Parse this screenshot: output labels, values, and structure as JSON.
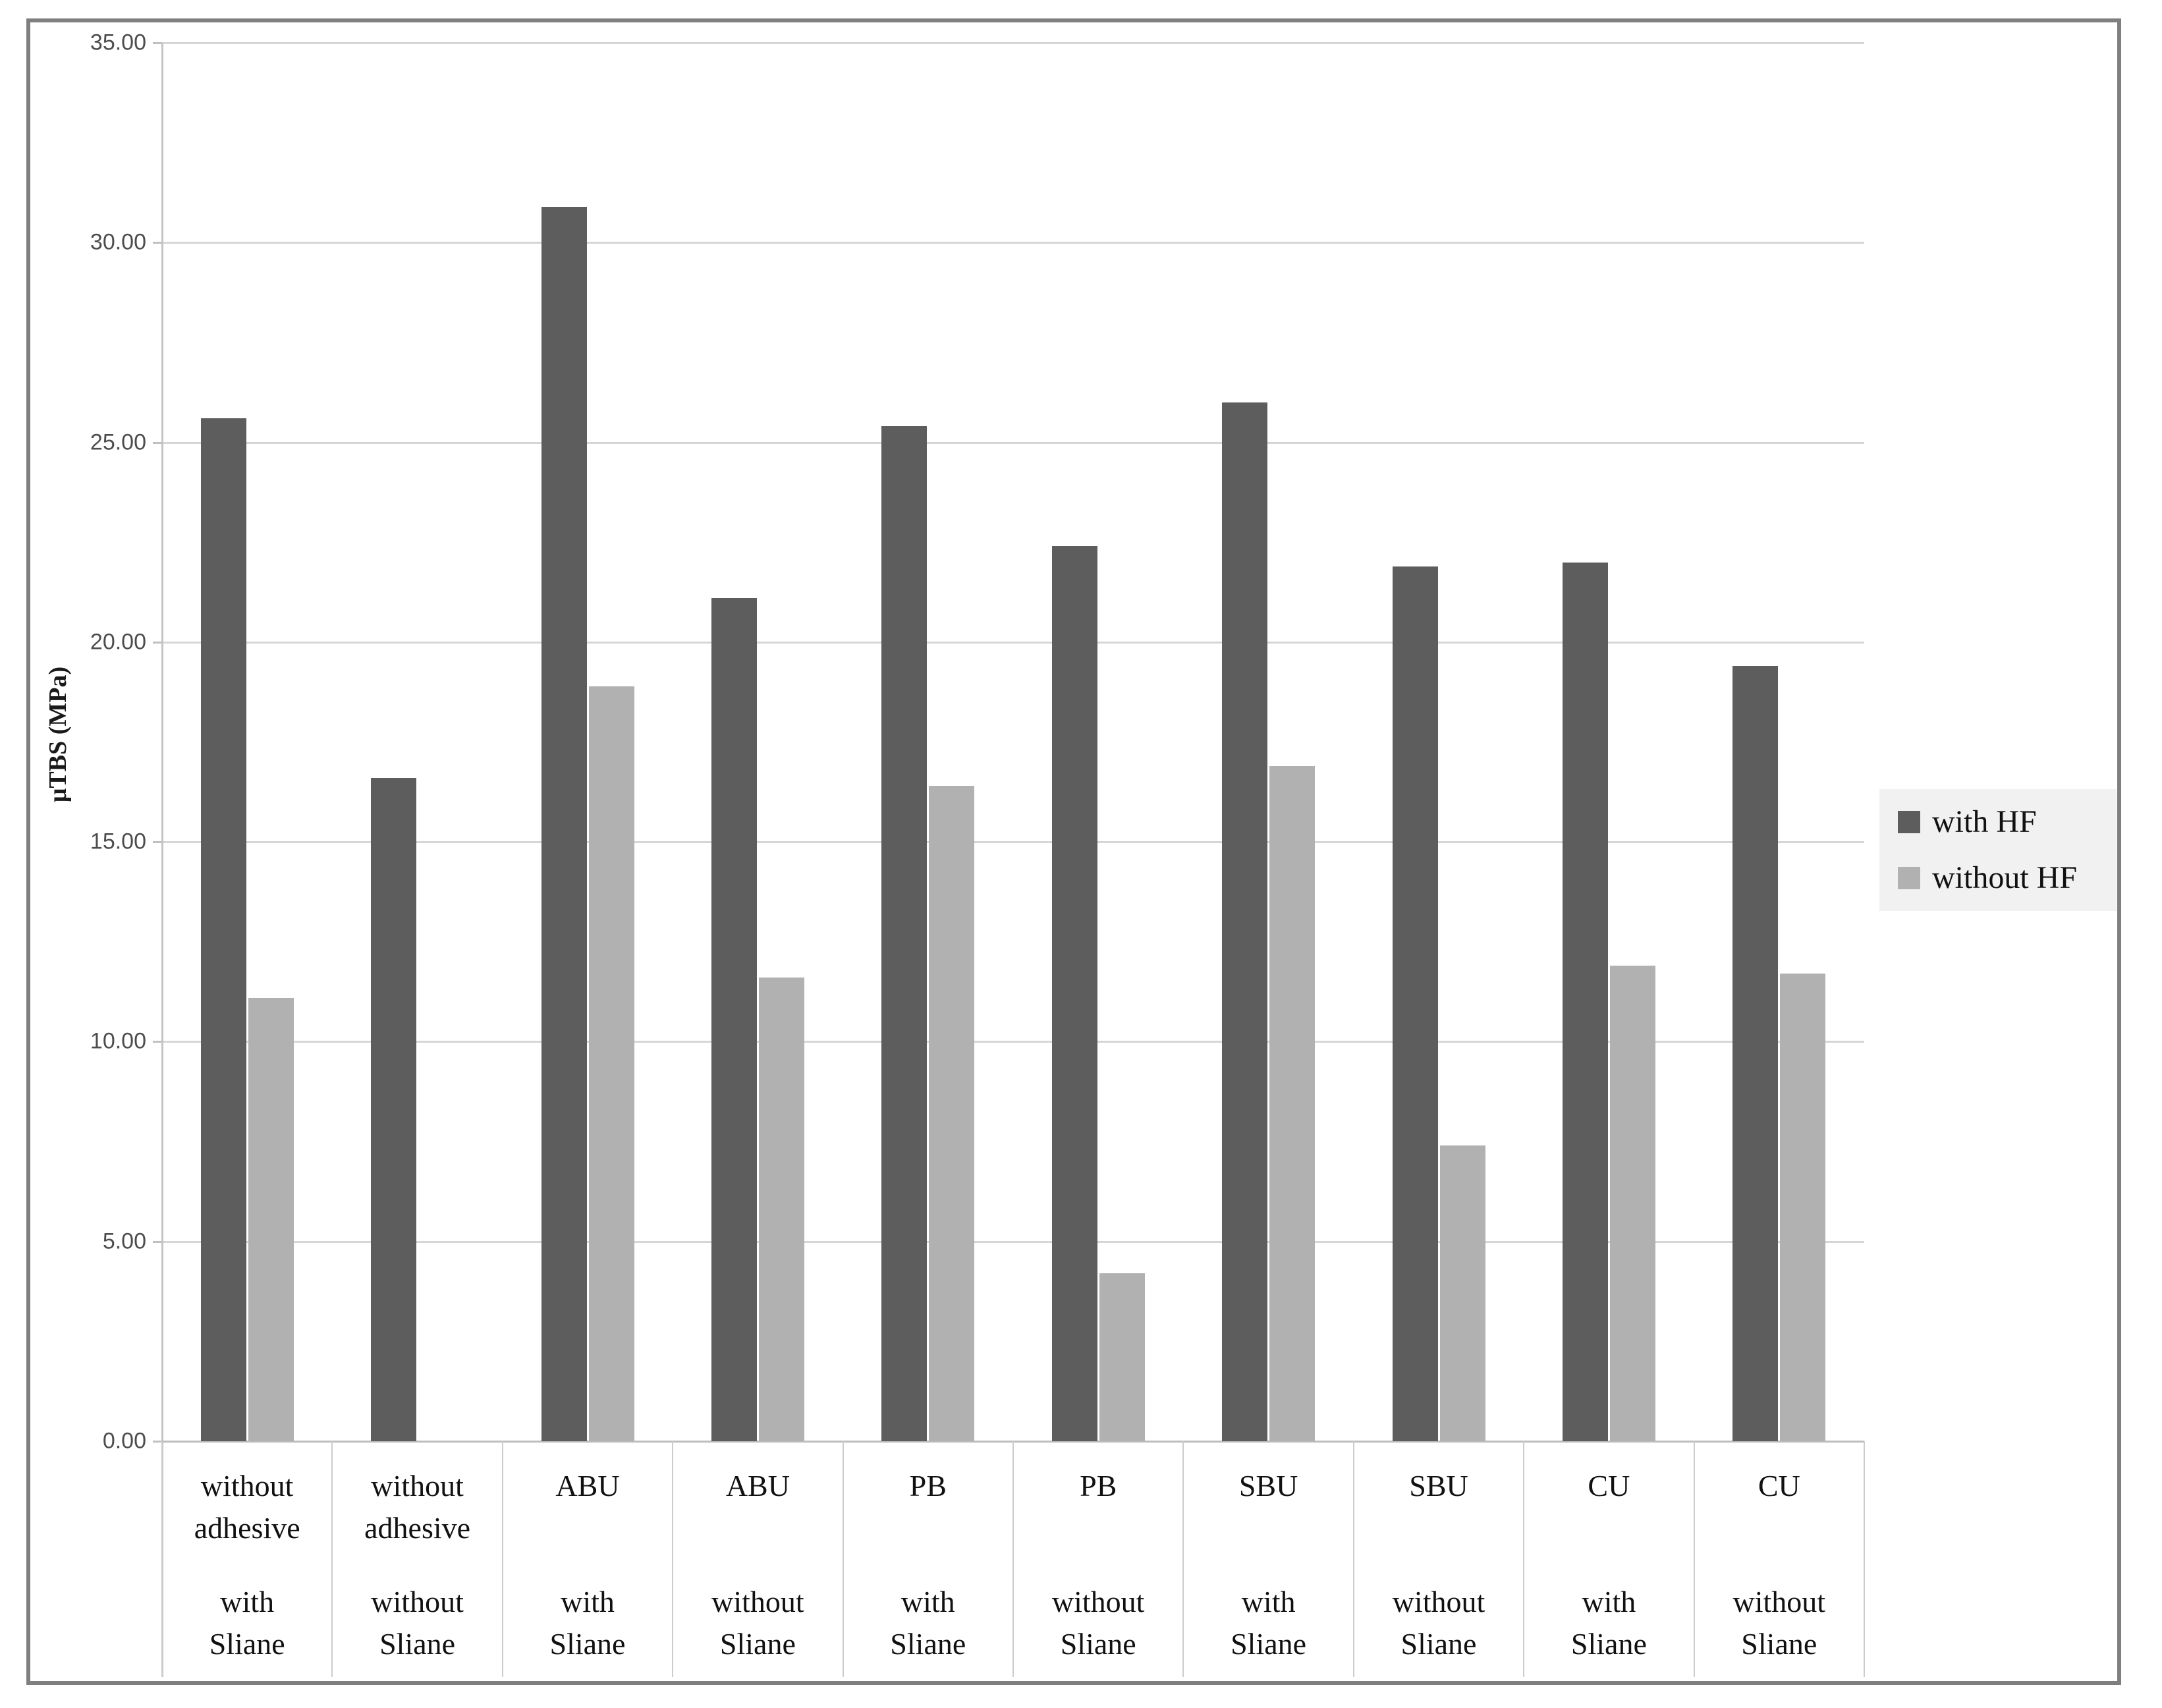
{
  "figure": {
    "y_axis_title": "μTBS (MPa)",
    "border_color": "#7f7f7f",
    "legend_bg": "#f1f1f1",
    "gridline_color": "#d6d6d6"
  },
  "chart_data": {
    "type": "bar",
    "title": "",
    "xlabel": "",
    "ylabel": "μTBS (MPa)",
    "ylim": [
      0,
      35
    ],
    "ytick_step": 5,
    "ytick_labels": [
      "0.00",
      "5.00",
      "10.00",
      "15.00",
      "20.00",
      "25.00",
      "30.00",
      "35.00"
    ],
    "grid": true,
    "legend_position": "right",
    "categories": [
      {
        "top": "without adhesive",
        "bottom": [
          "with",
          "Sliane"
        ]
      },
      {
        "top": "without adhesive",
        "bottom": [
          "without",
          "Sliane"
        ]
      },
      {
        "top": "ABU",
        "bottom": [
          "with",
          "Sliane"
        ]
      },
      {
        "top": "ABU",
        "bottom": [
          "without",
          "Sliane"
        ]
      },
      {
        "top": "PB",
        "bottom": [
          "with",
          "Sliane"
        ]
      },
      {
        "top": "PB",
        "bottom": [
          "without",
          "Sliane"
        ]
      },
      {
        "top": "SBU",
        "bottom": [
          "with",
          "Sliane"
        ]
      },
      {
        "top": "SBU",
        "bottom": [
          "without",
          "Sliane"
        ]
      },
      {
        "top": "CU",
        "bottom": [
          "with",
          "Sliane"
        ]
      },
      {
        "top": "CU",
        "bottom": [
          "without",
          "Sliane"
        ]
      }
    ],
    "series": [
      {
        "name": "with HF",
        "color": "#5d5d5d",
        "values": [
          25.6,
          16.6,
          30.9,
          21.1,
          25.4,
          22.4,
          26.0,
          21.9,
          22.0,
          19.4
        ]
      },
      {
        "name": "without HF",
        "color": "#b1b1b1",
        "values": [
          11.1,
          0,
          18.9,
          11.6,
          16.4,
          4.2,
          16.9,
          7.4,
          11.9,
          11.7
        ]
      }
    ]
  }
}
